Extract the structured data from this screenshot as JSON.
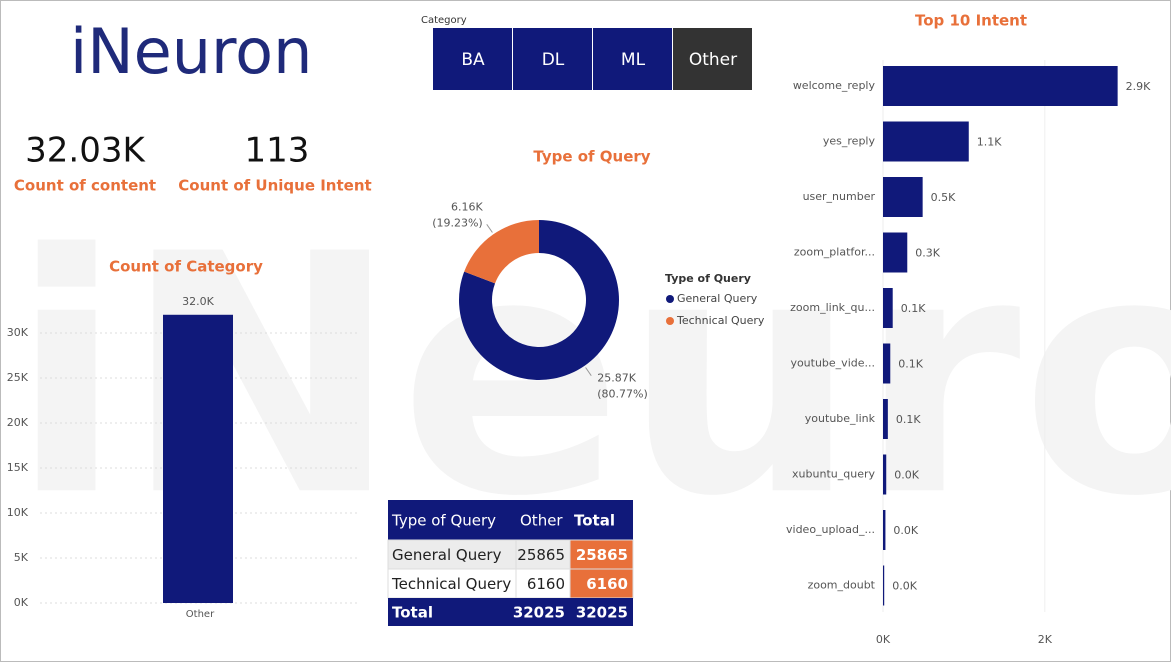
{
  "logo": "iNeuron",
  "slicer": {
    "title": "Category",
    "items": [
      "BA",
      "DL",
      "ML",
      "Other"
    ]
  },
  "kpis": [
    {
      "value": "32.03K",
      "label": "Count of content"
    },
    {
      "value": "113",
      "label": "Count of Unique  Intent"
    }
  ],
  "chart_data": [
    {
      "type": "bar",
      "title": "Count of Category",
      "categories": [
        "Other"
      ],
      "values": [
        32025
      ],
      "value_labels": [
        "32.0K"
      ],
      "color": "#10197a",
      "ylim": [
        0,
        32000
      ],
      "yticks": [
        {
          "value": 0,
          "label": "0K"
        },
        {
          "value": 5000,
          "label": "5K"
        },
        {
          "value": 10000,
          "label": "10K"
        },
        {
          "value": 15000,
          "label": "15K"
        },
        {
          "value": 20000,
          "label": "20K"
        },
        {
          "value": 25000,
          "label": "25K"
        },
        {
          "value": 30000,
          "label": "30K"
        }
      ],
      "grid": true
    },
    {
      "type": "pie",
      "title": "Type of Query",
      "legend_title": "Type of Query",
      "categories": [
        "General Query",
        "Technical Query"
      ],
      "values": [
        25865,
        6160
      ],
      "value_labels": [
        "25.87K",
        "6.16K"
      ],
      "percent_labels": [
        "(80.77%)",
        "(19.23%)"
      ],
      "colors": [
        "#10197a",
        "#e8703a"
      ]
    },
    {
      "type": "hbar",
      "title": "Top 10 Intent",
      "categories": [
        "welcome_reply",
        "yes_reply",
        "user_number",
        "zoom_platfor...",
        "zoom_link_qu...",
        "youtube_vide...",
        "youtube_link",
        "xubuntu_query",
        "video_upload_...",
        "zoom_doubt"
      ],
      "values": [
        2900,
        1060,
        490,
        300,
        120,
        90,
        60,
        40,
        30,
        15
      ],
      "value_labels": [
        "2.9K",
        "1.1K",
        "0.5K",
        "0.3K",
        "0.1K",
        "0.1K",
        "0.1K",
        "0.0K",
        "0.0K",
        "0.0K"
      ],
      "color": "#10197a",
      "xlim": [
        0,
        3300
      ],
      "xticks": [
        {
          "value": 0,
          "label": "0K"
        },
        {
          "value": 2000,
          "label": "2K"
        }
      ]
    }
  ],
  "table": {
    "header": [
      "Type of Query",
      "Other",
      "Total"
    ],
    "rows": [
      [
        "General Query",
        25865,
        25865
      ],
      [
        "Technical Query",
        6160,
        6160
      ]
    ],
    "total": [
      "Total",
      32025,
      32025
    ]
  }
}
